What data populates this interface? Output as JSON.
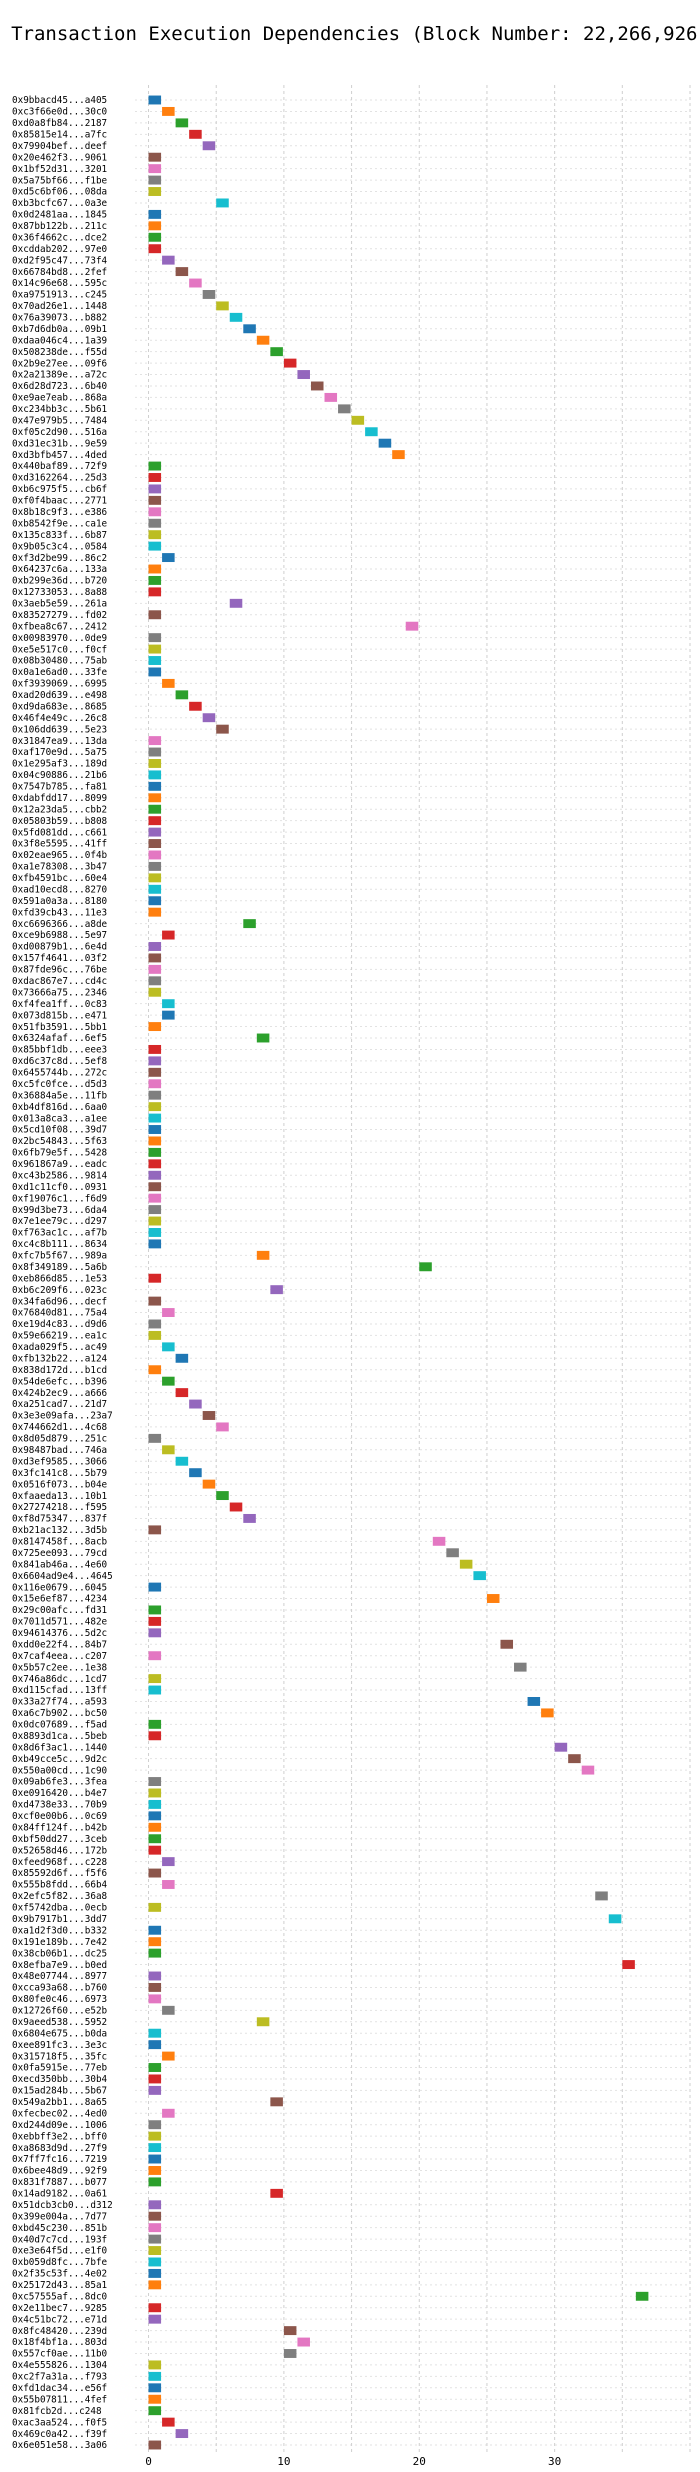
{
  "chart_data": {
    "type": "bar",
    "orientation": "horizontal",
    "title": "Transaction Execution Dependencies (Block Number: 22,266,926)",
    "xlabel": "",
    "ylabel": "",
    "xlim": [
      -1,
      40
    ],
    "xticks": [
      0,
      10,
      20,
      30
    ],
    "grid": true,
    "palette": [
      "#1f77b4",
      "#ff7f0e",
      "#2ca02c",
      "#d62728",
      "#9467bd",
      "#8c564b",
      "#e377c2",
      "#7f7f7f",
      "#bcbd22",
      "#17becf"
    ],
    "bar_width": 1,
    "rows": [
      {
        "label": "0x9bbacd45...a405",
        "start": 0,
        "color": 0
      },
      {
        "label": "0xc3f66e0d...30c0",
        "start": 1,
        "color": 1
      },
      {
        "label": "0xd0a8fb84...2187",
        "start": 2,
        "color": 2
      },
      {
        "label": "0x85815e14...a7fc",
        "start": 3,
        "color": 3
      },
      {
        "label": "0x79904bef...deef",
        "start": 4,
        "color": 4
      },
      {
        "label": "0x20e462f3...9061",
        "start": 0,
        "color": 5
      },
      {
        "label": "0x1bf52d31...3201",
        "start": 0,
        "color": 6
      },
      {
        "label": "0x5a75bf66...f1be",
        "start": 0,
        "color": 7
      },
      {
        "label": "0xd5c6bf06...08da",
        "start": 0,
        "color": 8
      },
      {
        "label": "0xb3bcfc67...0a3e",
        "start": 5,
        "color": 9
      },
      {
        "label": "0x0d2481aa...1845",
        "start": 0,
        "color": 0
      },
      {
        "label": "0x87bb122b...211c",
        "start": 0,
        "color": 1
      },
      {
        "label": "0x36f4662c...dce2",
        "start": 0,
        "color": 2
      },
      {
        "label": "0xcddab202...97e0",
        "start": 0,
        "color": 3
      },
      {
        "label": "0xd2f95c47...73f4",
        "start": 1,
        "color": 4
      },
      {
        "label": "0x66784bd8...2fef",
        "start": 2,
        "color": 5
      },
      {
        "label": "0x14c96e68...595c",
        "start": 3,
        "color": 6
      },
      {
        "label": "0xa9751913...c245",
        "start": 4,
        "color": 7
      },
      {
        "label": "0x70ad26e1...1448",
        "start": 5,
        "color": 8
      },
      {
        "label": "0x76a39073...b882",
        "start": 6,
        "color": 9
      },
      {
        "label": "0xb7d6db0a...09b1",
        "start": 7,
        "color": 0
      },
      {
        "label": "0xdaa046c4...1a39",
        "start": 8,
        "color": 1
      },
      {
        "label": "0x508238de...f55d",
        "start": 9,
        "color": 2
      },
      {
        "label": "0x2b9e27ee...09f6",
        "start": 10,
        "color": 3
      },
      {
        "label": "0x2a21389e...a72c",
        "start": 11,
        "color": 4
      },
      {
        "label": "0x6d28d723...6b40",
        "start": 12,
        "color": 5
      },
      {
        "label": "0xe9ae7eab...868a",
        "start": 13,
        "color": 6
      },
      {
        "label": "0xc234bb3c...5b61",
        "start": 14,
        "color": 7
      },
      {
        "label": "0x47e979b5...7484",
        "start": 15,
        "color": 8
      },
      {
        "label": "0xf05c2d90...516a",
        "start": 16,
        "color": 9
      },
      {
        "label": "0xd31ec31b...9e59",
        "start": 17,
        "color": 0
      },
      {
        "label": "0xd3bfb457...4ded",
        "start": 18,
        "color": 1
      },
      {
        "label": "0x440baf89...72f9",
        "start": 0,
        "color": 2
      },
      {
        "label": "0xd3162264...25d3",
        "start": 0,
        "color": 3
      },
      {
        "label": "0xb6c975f5...cb6f",
        "start": 0,
        "color": 4
      },
      {
        "label": "0xf0f4baac...2771",
        "start": 0,
        "color": 5
      },
      {
        "label": "0x8b18c9f3...e386",
        "start": 0,
        "color": 6
      },
      {
        "label": "0xb8542f9e...ca1e",
        "start": 0,
        "color": 7
      },
      {
        "label": "0x135c833f...6b87",
        "start": 0,
        "color": 8
      },
      {
        "label": "0x9b05c3c4...0584",
        "start": 0,
        "color": 9
      },
      {
        "label": "0xf3d2be99...86c2",
        "start": 1,
        "color": 0
      },
      {
        "label": "0x64237c6a...133a",
        "start": 0,
        "color": 1
      },
      {
        "label": "0xb299e36d...b720",
        "start": 0,
        "color": 2
      },
      {
        "label": "0x12733053...8a88",
        "start": 0,
        "color": 3
      },
      {
        "label": "0x3aeb5e59...261a",
        "start": 6,
        "color": 4
      },
      {
        "label": "0x83527279...fd02",
        "start": 0,
        "color": 5
      },
      {
        "label": "0xfbea8c67...2412",
        "start": 19,
        "color": 6
      },
      {
        "label": "0x00983970...0de9",
        "start": 0,
        "color": 7
      },
      {
        "label": "0xe5e517c0...f0cf",
        "start": 0,
        "color": 8
      },
      {
        "label": "0x08b30480...75ab",
        "start": 0,
        "color": 9
      },
      {
        "label": "0x0a1e6ad0...33fe",
        "start": 0,
        "color": 0
      },
      {
        "label": "0xf3939069...6995",
        "start": 1,
        "color": 1
      },
      {
        "label": "0xad20d639...e498",
        "start": 2,
        "color": 2
      },
      {
        "label": "0xd9da683e...8685",
        "start": 3,
        "color": 3
      },
      {
        "label": "0x46f4e49c...26c8",
        "start": 4,
        "color": 4
      },
      {
        "label": "0x106dd639...5e23",
        "start": 5,
        "color": 5
      },
      {
        "label": "0x31847ea9...13da",
        "start": 0,
        "color": 6
      },
      {
        "label": "0xaf170e9d...5a75",
        "start": 0,
        "color": 7
      },
      {
        "label": "0x1e295af3...189d",
        "start": 0,
        "color": 8
      },
      {
        "label": "0x04c90886...21b6",
        "start": 0,
        "color": 9
      },
      {
        "label": "0x7547b785...fa81",
        "start": 0,
        "color": 0
      },
      {
        "label": "0xdabfdd17...8099",
        "start": 0,
        "color": 1
      },
      {
        "label": "0x12a23da5...cbb2",
        "start": 0,
        "color": 2
      },
      {
        "label": "0x05803b59...b808",
        "start": 0,
        "color": 3
      },
      {
        "label": "0x5fd081dd...c661",
        "start": 0,
        "color": 4
      },
      {
        "label": "0x3f8e5595...41ff",
        "start": 0,
        "color": 5
      },
      {
        "label": "0x02eae965...0f4b",
        "start": 0,
        "color": 6
      },
      {
        "label": "0xa1e78308...3b47",
        "start": 0,
        "color": 7
      },
      {
        "label": "0xfb4591bc...60e4",
        "start": 0,
        "color": 8
      },
      {
        "label": "0xad10ecd8...8270",
        "start": 0,
        "color": 9
      },
      {
        "label": "0x591a0a3a...8180",
        "start": 0,
        "color": 0
      },
      {
        "label": "0xfd39cb43...11e3",
        "start": 0,
        "color": 1
      },
      {
        "label": "0xc6696366...a8de",
        "start": 7,
        "color": 2
      },
      {
        "label": "0xce9b6988...5e97",
        "start": 1,
        "color": 3
      },
      {
        "label": "0xd00879b1...6e4d",
        "start": 0,
        "color": 4
      },
      {
        "label": "0x157f4641...03f2",
        "start": 0,
        "color": 5
      },
      {
        "label": "0x87fde96c...76be",
        "start": 0,
        "color": 6
      },
      {
        "label": "0xdac867e7...cd4c",
        "start": 0,
        "color": 7
      },
      {
        "label": "0x73666a75...2346",
        "start": 0,
        "color": 8
      },
      {
        "label": "0xf4fea1ff...0c83",
        "start": 1,
        "color": 9
      },
      {
        "label": "0x073d815b...e471",
        "start": 1,
        "color": 0
      },
      {
        "label": "0x51fb3591...5bb1",
        "start": 0,
        "color": 1
      },
      {
        "label": "0x6324afaf...6ef5",
        "start": 8,
        "color": 2
      },
      {
        "label": "0x85bbf1db...eee3",
        "start": 0,
        "color": 3
      },
      {
        "label": "0xd6c37c8d...5ef8",
        "start": 0,
        "color": 4
      },
      {
        "label": "0x6455744b...272c",
        "start": 0,
        "color": 5
      },
      {
        "label": "0xc5fc0fce...d5d3",
        "start": 0,
        "color": 6
      },
      {
        "label": "0x36884a5e...11fb",
        "start": 0,
        "color": 7
      },
      {
        "label": "0xb4df816d...6aa0",
        "start": 0,
        "color": 8
      },
      {
        "label": "0x013a8ca3...a1ee",
        "start": 0,
        "color": 9
      },
      {
        "label": "0x5cd10f08...39d7",
        "start": 0,
        "color": 0
      },
      {
        "label": "0x2bc54843...5f63",
        "start": 0,
        "color": 1
      },
      {
        "label": "0x6fb79e5f...5428",
        "start": 0,
        "color": 2
      },
      {
        "label": "0x961867a9...eadc",
        "start": 0,
        "color": 3
      },
      {
        "label": "0xc43b2586...9814",
        "start": 0,
        "color": 4
      },
      {
        "label": "0xd1c11cf0...0931",
        "start": 0,
        "color": 5
      },
      {
        "label": "0xf19076c1...f6d9",
        "start": 0,
        "color": 6
      },
      {
        "label": "0x99d3be73...6da4",
        "start": 0,
        "color": 7
      },
      {
        "label": "0x7e1ee79c...d297",
        "start": 0,
        "color": 8
      },
      {
        "label": "0xf763ac1c...af7b",
        "start": 0,
        "color": 9
      },
      {
        "label": "0xc4c8b111...8634",
        "start": 0,
        "color": 0
      },
      {
        "label": "0xfc7b5f67...989a",
        "start": 8,
        "color": 1
      },
      {
        "label": "0x8f349189...5a6b",
        "start": 20,
        "color": 2
      },
      {
        "label": "0xeb866d85...1e53",
        "start": 0,
        "color": 3
      },
      {
        "label": "0xb6c209f6...023c",
        "start": 9,
        "color": 4
      },
      {
        "label": "0x34fa6d96...decf",
        "start": 0,
        "color": 5
      },
      {
        "label": "0x76840d81...75a4",
        "start": 1,
        "color": 6
      },
      {
        "label": "0xe19d4c83...d9d6",
        "start": 0,
        "color": 7
      },
      {
        "label": "0x59e66219...ea1c",
        "start": 0,
        "color": 8
      },
      {
        "label": "0xada029f5...ac49",
        "start": 1,
        "color": 9
      },
      {
        "label": "0xfb132b22...a124",
        "start": 2,
        "color": 0
      },
      {
        "label": "0x838d172d...b1cd",
        "start": 0,
        "color": 1
      },
      {
        "label": "0x54de6efc...b396",
        "start": 1,
        "color": 2
      },
      {
        "label": "0x424b2ec9...a666",
        "start": 2,
        "color": 3
      },
      {
        "label": "0xa251cad7...21d7",
        "start": 3,
        "color": 4
      },
      {
        "label": "0x3e3e09afa...23a7",
        "start": 4,
        "color": 5
      },
      {
        "label": "0x744662d1...4c68",
        "start": 5,
        "color": 6
      },
      {
        "label": "0x8d05d879...251c",
        "start": 0,
        "color": 7
      },
      {
        "label": "0x98487bad...746a",
        "start": 1,
        "color": 8
      },
      {
        "label": "0xd3ef9585...3066",
        "start": 2,
        "color": 9
      },
      {
        "label": "0x3fc141c8...5b79",
        "start": 3,
        "color": 0
      },
      {
        "label": "0x0516f073...b04e",
        "start": 4,
        "color": 1
      },
      {
        "label": "0xfaaeda13...10b1",
        "start": 5,
        "color": 2
      },
      {
        "label": "0x27274218...f595",
        "start": 6,
        "color": 3
      },
      {
        "label": "0xf8d75347...837f",
        "start": 7,
        "color": 4
      },
      {
        "label": "0xb21ac132...3d5b",
        "start": 0,
        "color": 5
      },
      {
        "label": "0x8147458f...8acb",
        "start": 21,
        "color": 6
      },
      {
        "label": "0x725ee093...79cd",
        "start": 22,
        "color": 7
      },
      {
        "label": "0x841ab46a...4e60",
        "start": 23,
        "color": 8
      },
      {
        "label": "0x6604ad9e4...4645",
        "start": 24,
        "color": 9
      },
      {
        "label": "0x116e0679...6045",
        "start": 0,
        "color": 0
      },
      {
        "label": "0x15e6ef87...4234",
        "start": 25,
        "color": 1
      },
      {
        "label": "0x29c00afc...fd31",
        "start": 0,
        "color": 2
      },
      {
        "label": "0x7011d571...482e",
        "start": 0,
        "color": 3
      },
      {
        "label": "0x94614376...5d2c",
        "start": 0,
        "color": 4
      },
      {
        "label": "0xdd0e22f4...84b7",
        "start": 26,
        "color": 5
      },
      {
        "label": "0x7caf4eea...c207",
        "start": 0,
        "color": 6
      },
      {
        "label": "0x5b57c2ee...1e38",
        "start": 27,
        "color": 7
      },
      {
        "label": "0x746a86dc...1cd7",
        "start": 0,
        "color": 8
      },
      {
        "label": "0xd115cfad...13ff",
        "start": 0,
        "color": 9
      },
      {
        "label": "0x33a27f74...a593",
        "start": 28,
        "color": 0
      },
      {
        "label": "0xa6c7b902...bc50",
        "start": 29,
        "color": 1
      },
      {
        "label": "0x0dc07689...f5ad",
        "start": 0,
        "color": 2
      },
      {
        "label": "0x8893d1ca...5beb",
        "start": 0,
        "color": 3
      },
      {
        "label": "0x8d6f3ac1...1440",
        "start": 30,
        "color": 4
      },
      {
        "label": "0xb49cce5c...9d2c",
        "start": 31,
        "color": 5
      },
      {
        "label": "0x550a00cd...1c90",
        "start": 32,
        "color": 6
      },
      {
        "label": "0x09ab6fe3...3fea",
        "start": 0,
        "color": 7
      },
      {
        "label": "0xe0916420...b4e7",
        "start": 0,
        "color": 8
      },
      {
        "label": "0xd4738e33...70b9",
        "start": 0,
        "color": 9
      },
      {
        "label": "0xcf0e00b6...0c69",
        "start": 0,
        "color": 0
      },
      {
        "label": "0x84ff124f...b42b",
        "start": 0,
        "color": 1
      },
      {
        "label": "0xbf50dd27...3ceb",
        "start": 0,
        "color": 2
      },
      {
        "label": "0x52658d46...172b",
        "start": 0,
        "color": 3
      },
      {
        "label": "0xfeed968f...c228",
        "start": 1,
        "color": 4
      },
      {
        "label": "0x85592d6f...f5f6",
        "start": 0,
        "color": 5
      },
      {
        "label": "0x555b8fdd...66b4",
        "start": 1,
        "color": 6
      },
      {
        "label": "0x2efc5f82...36a8",
        "start": 33,
        "color": 7
      },
      {
        "label": "0xf5742dba...0ecb",
        "start": 0,
        "color": 8
      },
      {
        "label": "0x9b7917b1...3dd7",
        "start": 34,
        "color": 9
      },
      {
        "label": "0xa1d2f3d0...b332",
        "start": 0,
        "color": 0
      },
      {
        "label": "0x191e189b...7e42",
        "start": 0,
        "color": 1
      },
      {
        "label": "0x38cb06b1...dc25",
        "start": 0,
        "color": 2
      },
      {
        "label": "0x8efba7e9...b0ed",
        "start": 35,
        "color": 3
      },
      {
        "label": "0x48e07744...8977",
        "start": 0,
        "color": 4
      },
      {
        "label": "0xcca93a68...b760",
        "start": 0,
        "color": 5
      },
      {
        "label": "0x80fe0c46...6973",
        "start": 0,
        "color": 6
      },
      {
        "label": "0x12726f60...e52b",
        "start": 1,
        "color": 7
      },
      {
        "label": "0x9aeed538...5952",
        "start": 8,
        "color": 8
      },
      {
        "label": "0x6804e675...b0da",
        "start": 0,
        "color": 9
      },
      {
        "label": "0xee891fc3...3e3c",
        "start": 0,
        "color": 0
      },
      {
        "label": "0x315718f5...35fc",
        "start": 1,
        "color": 1
      },
      {
        "label": "0x0fa5915e...77eb",
        "start": 0,
        "color": 2
      },
      {
        "label": "0xecd350bb...30b4",
        "start": 0,
        "color": 3
      },
      {
        "label": "0x15ad284b...5b67",
        "start": 0,
        "color": 4
      },
      {
        "label": "0x549a2bb1...8a65",
        "start": 9,
        "color": 5
      },
      {
        "label": "0xfecbec02...4ed0",
        "start": 1,
        "color": 6
      },
      {
        "label": "0xd244d09e...1006",
        "start": 0,
        "color": 7
      },
      {
        "label": "0xebbff3e2...bff0",
        "start": 0,
        "color": 8
      },
      {
        "label": "0xa8683d9d...27f9",
        "start": 0,
        "color": 9
      },
      {
        "label": "0x7ff7fc16...7219",
        "start": 0,
        "color": 0
      },
      {
        "label": "0x6bee48d9...92f9",
        "start": 0,
        "color": 1
      },
      {
        "label": "0x831f7887...b077",
        "start": 0,
        "color": 2
      },
      {
        "label": "0x14ad9182...0a61",
        "start": 9,
        "color": 3
      },
      {
        "label": "0x51dcb3cb0...d312",
        "start": 0,
        "color": 4
      },
      {
        "label": "0x399e004a...7d77",
        "start": 0,
        "color": 5
      },
      {
        "label": "0xbd45c230...851b",
        "start": 0,
        "color": 6
      },
      {
        "label": "0x40d7c7cd...193f",
        "start": 0,
        "color": 7
      },
      {
        "label": "0xe3e64f5d...e1f0",
        "start": 0,
        "color": 8
      },
      {
        "label": "0xb059d8fc...7bfe",
        "start": 0,
        "color": 9
      },
      {
        "label": "0x2f35c53f...4e02",
        "start": 0,
        "color": 0
      },
      {
        "label": "0x25172d43...85a1",
        "start": 0,
        "color": 1
      },
      {
        "label": "0xc57555af...8dc0",
        "start": 36,
        "color": 2
      },
      {
        "label": "0x2e11bec7...9285",
        "start": 0,
        "color": 3
      },
      {
        "label": "0x4c51bc72...e71d",
        "start": 0,
        "color": 4
      },
      {
        "label": "0x8fc48420...239d",
        "start": 10,
        "color": 5
      },
      {
        "label": "0x18f4bf1a...803d",
        "start": 11,
        "color": 6
      },
      {
        "label": "0x557cf0ae...11b0",
        "start": 10,
        "color": 7
      },
      {
        "label": "0x4e555826...1304",
        "start": 0,
        "color": 8
      },
      {
        "label": "0xc2f7a31a...f793",
        "start": 0,
        "color": 9
      },
      {
        "label": "0xfd1dac34...e56f",
        "start": 0,
        "color": 0
      },
      {
        "label": "0x55b07811...4fef",
        "start": 0,
        "color": 1
      },
      {
        "label": "0x81fcb2d...c248",
        "start": 0,
        "color": 2
      },
      {
        "label": "0xac3aa524...f0f5",
        "start": 1,
        "color": 3
      },
      {
        "label": "0x469c0a42...f39f",
        "start": 2,
        "color": 4
      },
      {
        "label": "0x6e051e58...3a06",
        "start": 0,
        "color": 5
      }
    ]
  }
}
